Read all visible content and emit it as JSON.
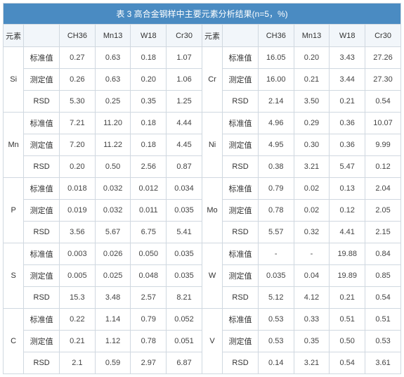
{
  "title": "表 3 高合金钢样中主要元素分析结果(n=5，%)",
  "colHeader": {
    "elem": "元素",
    "blank": "",
    "c1": "CH36",
    "c2": "Mn13",
    "c3": "W18",
    "c4": "Cr30"
  },
  "rowTypes": {
    "std": "标准值",
    "meas": "测定值",
    "rsd": "RSD"
  },
  "left": [
    {
      "elem": "Si",
      "std": [
        "0.27",
        "0.63",
        "0.18",
        "1.07"
      ],
      "meas": [
        "0.26",
        "0.63",
        "0.20",
        "1.06"
      ],
      "rsd": [
        "5.30",
        "0.25",
        "0.35",
        "1.25"
      ]
    },
    {
      "elem": "Mn",
      "std": [
        "7.21",
        "11.20",
        "0.18",
        "4.44"
      ],
      "meas": [
        "7.20",
        "11.22",
        "0.18",
        "4.45"
      ],
      "rsd": [
        "0.20",
        "0.50",
        "2.56",
        "0.87"
      ]
    },
    {
      "elem": "P",
      "std": [
        "0.018",
        "0.032",
        "0.012",
        "0.034"
      ],
      "meas": [
        "0.019",
        "0.032",
        "0.011",
        "0.035"
      ],
      "rsd": [
        "3.56",
        "5.67",
        "6.75",
        "5.41"
      ]
    },
    {
      "elem": "S",
      "std": [
        "0.003",
        "0.026",
        "0.050",
        "0.035"
      ],
      "meas": [
        "0.005",
        "0.025",
        "0.048",
        "0.035"
      ],
      "rsd": [
        "15.3",
        "3.48",
        "2.57",
        "8.21"
      ]
    },
    {
      "elem": "C",
      "std": [
        "0.22",
        "1.14",
        "0.79",
        "0.052"
      ],
      "meas": [
        "0.21",
        "1.12",
        "0.78",
        "0.051"
      ],
      "rsd": [
        "2.1",
        "0.59",
        "2.97",
        "6.87"
      ]
    }
  ],
  "right": [
    {
      "elem": "Cr",
      "std": [
        "16.05",
        "0.20",
        "3.43",
        "27.26"
      ],
      "meas": [
        "16.00",
        "0.21",
        "3.44",
        "27.30"
      ],
      "rsd": [
        "2.14",
        "3.50",
        "0.21",
        "0.54"
      ]
    },
    {
      "elem": "Ni",
      "std": [
        "4.96",
        "0.29",
        "0.36",
        "10.07"
      ],
      "meas": [
        "4.95",
        "0.30",
        "0.36",
        "9.99"
      ],
      "rsd": [
        "0.38",
        "3.21",
        "5.47",
        "0.12"
      ]
    },
    {
      "elem": "Mo",
      "std": [
        "0.79",
        "0.02",
        "0.13",
        "2.04"
      ],
      "meas": [
        "0.78",
        "0.02",
        "0.12",
        "2.05"
      ],
      "rsd": [
        "5.57",
        "0.32",
        "4.41",
        "2.15"
      ]
    },
    {
      "elem": "W",
      "std": [
        "-",
        "-",
        "19.88",
        "0.84"
      ],
      "meas": [
        "0.035",
        "0.04",
        "19.89",
        "0.85"
      ],
      "rsd": [
        "5.12",
        "4.12",
        "0.21",
        "0.54"
      ]
    },
    {
      "elem": "V",
      "std": [
        "0.53",
        "0.33",
        "0.51",
        "0.51"
      ],
      "meas": [
        "0.53",
        "0.35",
        "0.50",
        "0.53"
      ],
      "rsd": [
        "0.14",
        "3.21",
        "0.54",
        "3.61"
      ]
    }
  ],
  "style": {
    "titleBg": "#4a8bc2",
    "titleColor": "#ffffff",
    "headerBg": "#f2f6fa",
    "borderColor": "#d0d8e0",
    "textColor": "#444444",
    "fontSize": 11
  }
}
